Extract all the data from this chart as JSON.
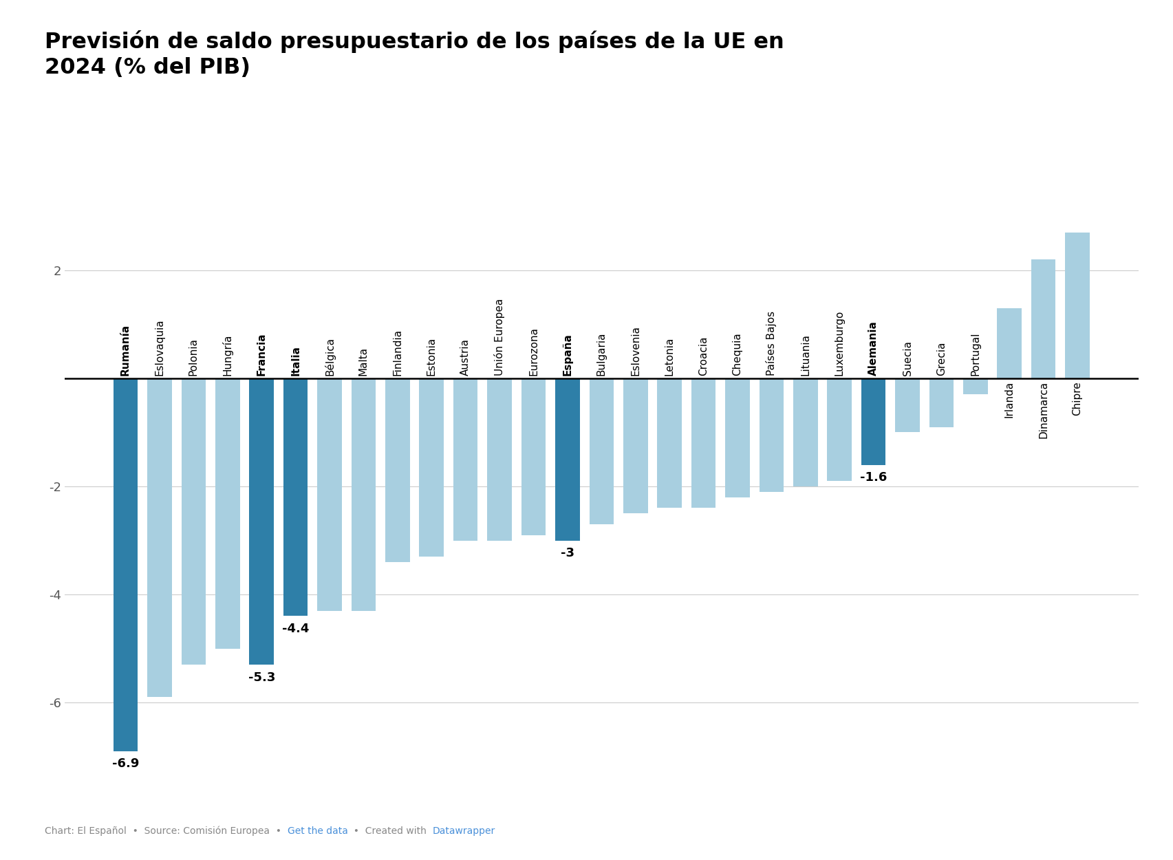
{
  "title": "Previsión de saldo presupuestario de los países de la UE en\n2024 (% del PIB)",
  "countries": [
    "Rumanía",
    "Eslovaquia",
    "Polonia",
    "Hungría",
    "Francia",
    "Italia",
    "Bélgica",
    "Malta",
    "Finlandia",
    "Estonia",
    "Austria",
    "Unión Europea",
    "Eurozona",
    "España",
    "Bulgaria",
    "Eslovenia",
    "Letonia",
    "Croacia",
    "Chequia",
    "Países Bajos",
    "Lituania",
    "Luxemburgo",
    "Alemania",
    "Suecia",
    "Grecia",
    "Portugal",
    "Irlanda",
    "Dinamarca",
    "Chipre"
  ],
  "values": [
    -6.9,
    -5.9,
    -5.3,
    -5.0,
    -5.3,
    -4.4,
    -4.3,
    -4.3,
    -3.4,
    -3.3,
    -3.0,
    -3.0,
    -2.9,
    -3.0,
    -2.7,
    -2.5,
    -2.4,
    -2.4,
    -2.2,
    -2.1,
    -2.0,
    -1.9,
    -1.6,
    -1.0,
    -0.9,
    -0.3,
    1.3,
    2.2,
    2.7
  ],
  "highlighted": [
    true,
    false,
    false,
    false,
    true,
    true,
    false,
    false,
    false,
    false,
    false,
    false,
    false,
    true,
    false,
    false,
    false,
    false,
    false,
    false,
    false,
    false,
    true,
    false,
    false,
    false,
    false,
    false,
    false
  ],
  "labeled": {
    "Rumanía": "-6.9",
    "Francia": "-5.3",
    "Italia": "-4.4",
    "España": "-3",
    "Alemania": "-1.6"
  },
  "dark_blue": "#2e7fa8",
  "light_blue": "#a8cfe0",
  "background_color": "#ffffff",
  "ylim": [
    -7.8,
    3.5
  ],
  "yticks": [
    -6,
    -4,
    -2,
    0,
    2
  ],
  "footer_gray": "#888888",
  "link_color": "#4a90d9"
}
